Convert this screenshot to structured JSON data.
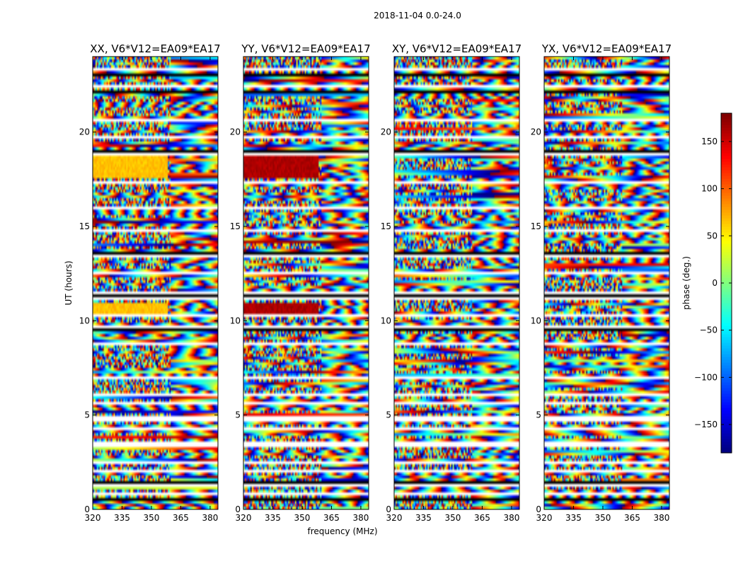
{
  "chart_data": {
    "type": "heatmap",
    "suptitle": "2018-11-04 0.0-24.0",
    "panels": [
      {
        "title": "XX, V6*V12=EA09*EA17",
        "seed": 11,
        "base": 0.46,
        "stripes": [
          [
            0,
            0,
            0
          ],
          [
            0,
            0,
            0
          ]
        ]
      },
      {
        "title": "YY, V6*V12=EA09*EA17",
        "seed": 23,
        "base": 0.52,
        "stripes": [
          [
            0,
            0,
            0
          ],
          [
            0,
            0,
            0
          ]
        ]
      },
      {
        "title": "XY, V6*V12=EA09*EA17",
        "seed": 37,
        "base": 0.5,
        "stripes": [
          [
            0,
            0,
            0
          ],
          [
            0,
            0,
            0
          ]
        ]
      },
      {
        "title": "YX, V6*V12=EA09*EA17",
        "seed": 53,
        "base": 0.5,
        "stripes": [
          [
            0,
            0,
            0
          ],
          [
            0,
            0,
            0
          ]
        ]
      }
    ],
    "xlabel": "frequency (MHz)",
    "ylabel": "UT (hours)",
    "xlim": [
      320,
      384
    ],
    "ylim": [
      0,
      24
    ],
    "xticks": [
      320,
      335,
      350,
      365,
      380
    ],
    "yticks": [
      0,
      5,
      10,
      15,
      20
    ],
    "colorbar": {
      "label": "phase (deg.)",
      "range": [
        -180,
        180
      ],
      "ticks": [
        -150,
        -100,
        -50,
        0,
        50,
        100,
        150
      ],
      "tick_labels": [
        "−150",
        "−100",
        "−50",
        "0",
        "50",
        "100",
        "150"
      ],
      "colormap": "jet"
    },
    "flagged_gaps_hours": [
      0.5,
      0.85,
      1.35,
      2.0,
      2.5,
      3.45,
      4.3,
      4.8,
      5.6,
      6.1,
      7.0,
      8.8,
      9.6,
      10.3,
      11.2,
      11.4,
      12.5,
      13.5,
      14.8,
      16.0,
      17.3,
      18.9,
      19.7,
      20.6,
      22.1,
      22.4,
      23.0,
      23.35
    ],
    "colors": {
      "axes": "#000000",
      "flagged": "#ffffff"
    }
  }
}
